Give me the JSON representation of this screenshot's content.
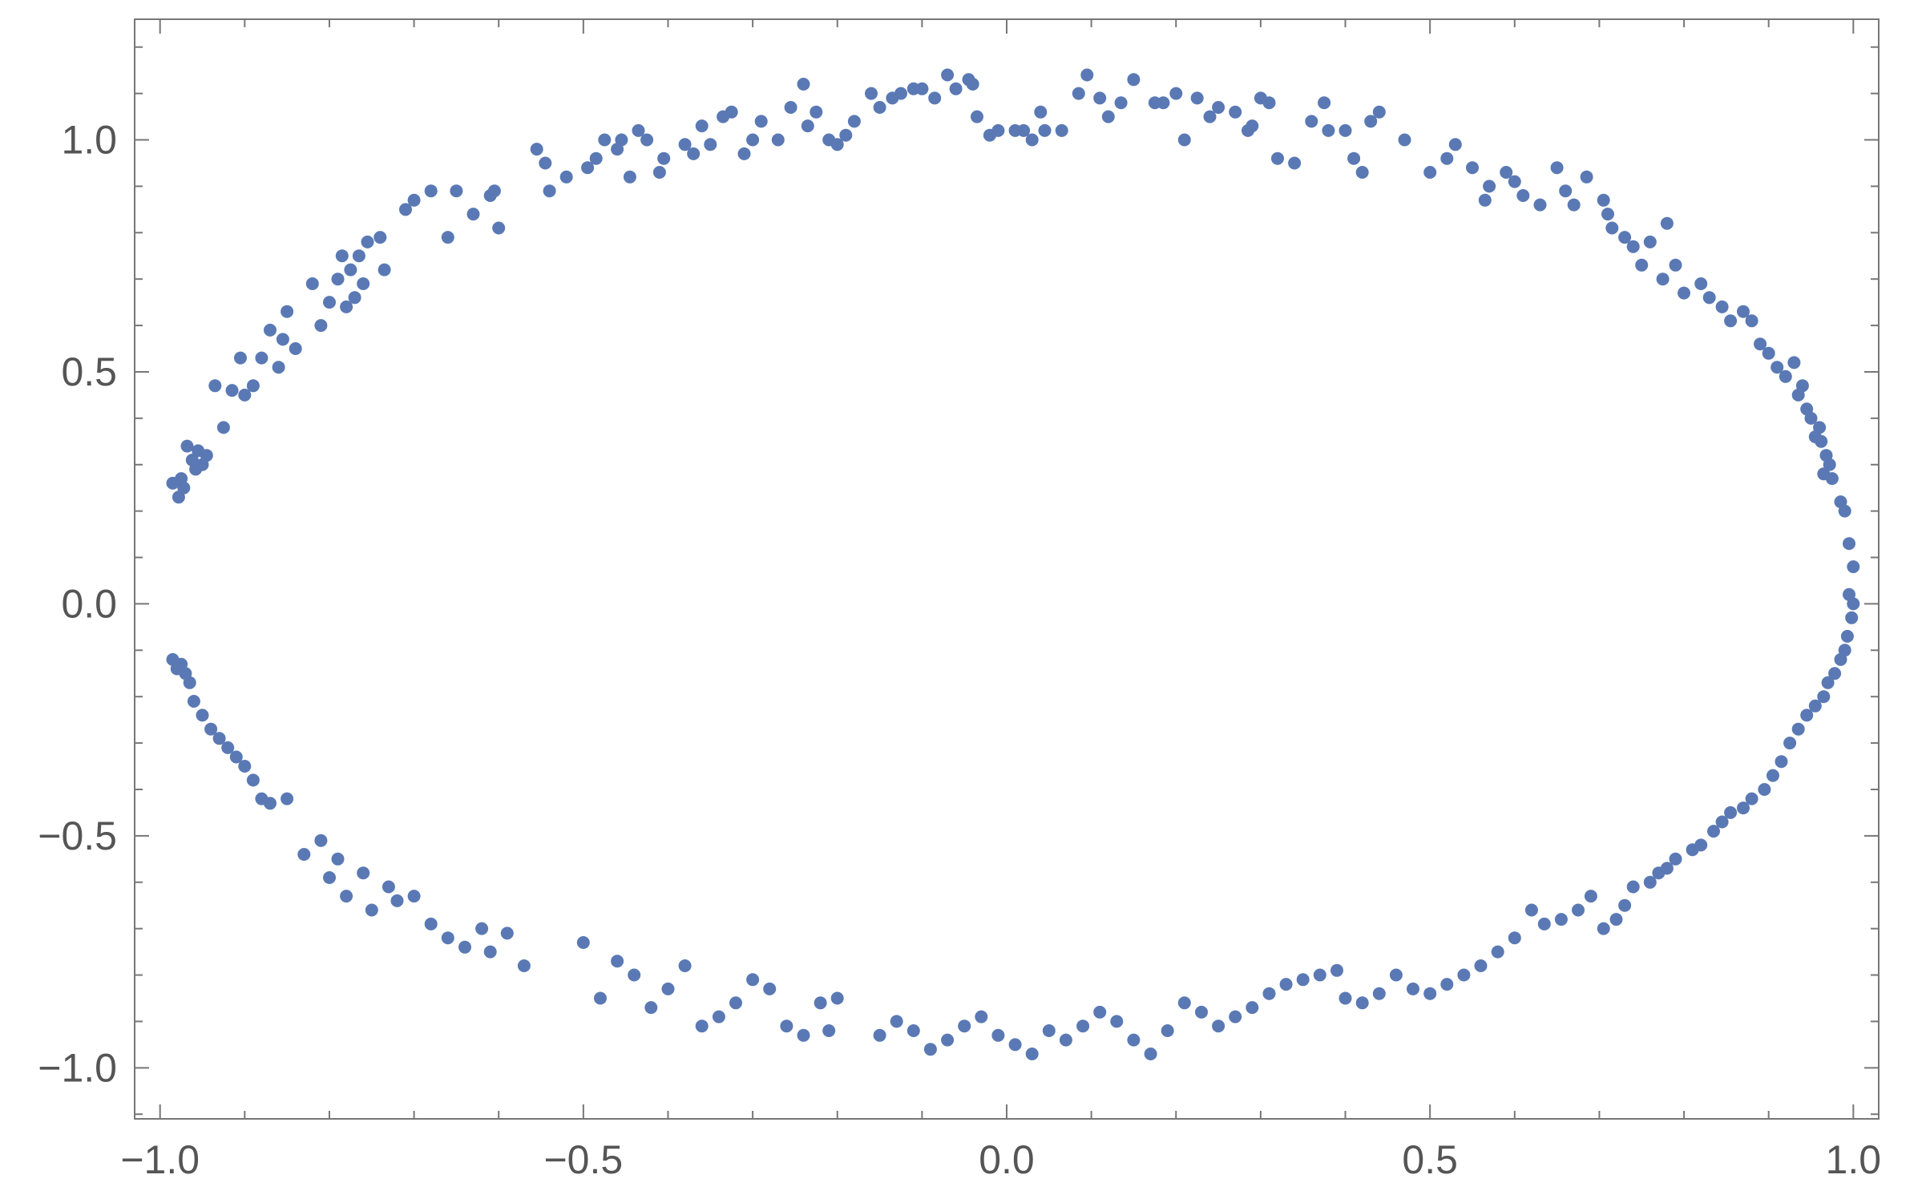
{
  "chart_data": {
    "type": "scatter",
    "title": "",
    "xlabel": "",
    "ylabel": "",
    "xlim": [
      -1.03,
      1.03
    ],
    "ylim": [
      -1.11,
      1.26
    ],
    "xticks": [
      -1.0,
      -0.5,
      0.0,
      0.5,
      1.0
    ],
    "xtick_labels": [
      "−1.0",
      "−0.5",
      "0.0",
      "0.5",
      "1.0"
    ],
    "yticks": [
      -1.0,
      -0.5,
      0.0,
      0.5,
      1.0
    ],
    "ytick_labels": [
      "−1.0",
      "−0.5",
      "0.0",
      "0.5",
      "1.0"
    ],
    "grid": false,
    "marker_color": "#5a79b4",
    "axis_color": "#777777",
    "series": [
      {
        "points": [
          [
            -0.985,
            0.26
          ],
          [
            -0.978,
            0.23
          ],
          [
            -0.975,
            0.27
          ],
          [
            -0.972,
            0.25
          ],
          [
            -0.968,
            0.34
          ],
          [
            -0.962,
            0.31
          ],
          [
            -0.958,
            0.29
          ],
          [
            -0.955,
            0.33
          ],
          [
            -0.95,
            0.3
          ],
          [
            -0.945,
            0.32
          ],
          [
            -0.935,
            0.47
          ],
          [
            -0.925,
            0.38
          ],
          [
            -0.915,
            0.46
          ],
          [
            -0.905,
            0.53
          ],
          [
            -0.9,
            0.45
          ],
          [
            -0.89,
            0.47
          ],
          [
            -0.88,
            0.53
          ],
          [
            -0.87,
            0.59
          ],
          [
            -0.86,
            0.51
          ],
          [
            -0.855,
            0.57
          ],
          [
            -0.85,
            0.63
          ],
          [
            -0.84,
            0.55
          ],
          [
            -0.82,
            0.69
          ],
          [
            -0.81,
            0.6
          ],
          [
            -0.8,
            0.65
          ],
          [
            -0.79,
            0.7
          ],
          [
            -0.785,
            0.75
          ],
          [
            -0.78,
            0.64
          ],
          [
            -0.775,
            0.72
          ],
          [
            -0.77,
            0.66
          ],
          [
            -0.765,
            0.75
          ],
          [
            -0.76,
            0.69
          ],
          [
            -0.755,
            0.78
          ],
          [
            -0.74,
            0.79
          ],
          [
            -0.735,
            0.72
          ],
          [
            -0.71,
            0.85
          ],
          [
            -0.7,
            0.87
          ],
          [
            -0.68,
            0.89
          ],
          [
            -0.66,
            0.79
          ],
          [
            -0.65,
            0.89
          ],
          [
            -0.63,
            0.84
          ],
          [
            -0.61,
            0.88
          ],
          [
            -0.605,
            0.89
          ],
          [
            -0.6,
            0.81
          ],
          [
            -0.555,
            0.98
          ],
          [
            -0.545,
            0.95
          ],
          [
            -0.54,
            0.89
          ],
          [
            -0.52,
            0.92
          ],
          [
            -0.495,
            0.94
          ],
          [
            -0.485,
            0.96
          ],
          [
            -0.475,
            1.0
          ],
          [
            -0.46,
            0.98
          ],
          [
            -0.455,
            1.0
          ],
          [
            -0.445,
            0.92
          ],
          [
            -0.435,
            1.02
          ],
          [
            -0.425,
            1.0
          ],
          [
            -0.41,
            0.93
          ],
          [
            -0.405,
            0.96
          ],
          [
            -0.38,
            0.99
          ],
          [
            -0.37,
            0.97
          ],
          [
            -0.36,
            1.03
          ],
          [
            -0.35,
            0.99
          ],
          [
            -0.335,
            1.05
          ],
          [
            -0.325,
            1.06
          ],
          [
            -0.31,
            0.97
          ],
          [
            -0.3,
            1.0
          ],
          [
            -0.29,
            1.04
          ],
          [
            -0.27,
            1.0
          ],
          [
            -0.255,
            1.07
          ],
          [
            -0.24,
            1.12
          ],
          [
            -0.235,
            1.03
          ],
          [
            -0.225,
            1.06
          ],
          [
            -0.21,
            1.0
          ],
          [
            -0.2,
            0.99
          ],
          [
            -0.19,
            1.01
          ],
          [
            -0.18,
            1.04
          ],
          [
            -0.16,
            1.1
          ],
          [
            -0.15,
            1.07
          ],
          [
            -0.135,
            1.09
          ],
          [
            -0.125,
            1.1
          ],
          [
            -0.11,
            1.11
          ],
          [
            -0.1,
            1.11
          ],
          [
            -0.085,
            1.09
          ],
          [
            -0.07,
            1.14
          ],
          [
            -0.06,
            1.11
          ],
          [
            -0.045,
            1.13
          ],
          [
            -0.04,
            1.12
          ],
          [
            -0.035,
            1.05
          ],
          [
            -0.02,
            1.01
          ],
          [
            -0.01,
            1.02
          ],
          [
            0.01,
            1.02
          ],
          [
            0.02,
            1.02
          ],
          [
            0.03,
            1.0
          ],
          [
            0.04,
            1.06
          ],
          [
            0.045,
            1.02
          ],
          [
            0.065,
            1.02
          ],
          [
            0.085,
            1.1
          ],
          [
            0.095,
            1.14
          ],
          [
            0.11,
            1.09
          ],
          [
            0.12,
            1.05
          ],
          [
            0.135,
            1.08
          ],
          [
            0.15,
            1.13
          ],
          [
            0.175,
            1.08
          ],
          [
            0.185,
            1.08
          ],
          [
            0.2,
            1.1
          ],
          [
            0.21,
            1.0
          ],
          [
            0.225,
            1.09
          ],
          [
            0.24,
            1.05
          ],
          [
            0.25,
            1.07
          ],
          [
            0.27,
            1.06
          ],
          [
            0.285,
            1.02
          ],
          [
            0.29,
            1.03
          ],
          [
            0.3,
            1.09
          ],
          [
            0.31,
            1.08
          ],
          [
            0.32,
            0.96
          ],
          [
            0.34,
            0.95
          ],
          [
            0.36,
            1.04
          ],
          [
            0.375,
            1.08
          ],
          [
            0.38,
            1.02
          ],
          [
            0.4,
            1.02
          ],
          [
            0.41,
            0.96
          ],
          [
            0.42,
            0.93
          ],
          [
            0.43,
            1.04
          ],
          [
            0.44,
            1.06
          ],
          [
            0.47,
            1.0
          ],
          [
            0.5,
            0.93
          ],
          [
            0.52,
            0.96
          ],
          [
            0.53,
            0.99
          ],
          [
            0.55,
            0.94
          ],
          [
            0.565,
            0.87
          ],
          [
            0.57,
            0.9
          ],
          [
            0.59,
            0.93
          ],
          [
            0.6,
            0.91
          ],
          [
            0.61,
            0.88
          ],
          [
            0.63,
            0.86
          ],
          [
            0.65,
            0.94
          ],
          [
            0.66,
            0.89
          ],
          [
            0.67,
            0.86
          ],
          [
            0.685,
            0.92
          ],
          [
            0.705,
            0.87
          ],
          [
            0.71,
            0.84
          ],
          [
            0.715,
            0.81
          ],
          [
            0.73,
            0.79
          ],
          [
            0.74,
            0.77
          ],
          [
            0.75,
            0.73
          ],
          [
            0.76,
            0.78
          ],
          [
            0.775,
            0.7
          ],
          [
            0.78,
            0.82
          ],
          [
            0.79,
            0.73
          ],
          [
            0.8,
            0.67
          ],
          [
            0.82,
            0.69
          ],
          [
            0.83,
            0.66
          ],
          [
            0.845,
            0.64
          ],
          [
            0.855,
            0.61
          ],
          [
            0.87,
            0.63
          ],
          [
            0.88,
            0.61
          ],
          [
            0.89,
            0.56
          ],
          [
            0.9,
            0.54
          ],
          [
            0.91,
            0.51
          ],
          [
            0.92,
            0.49
          ],
          [
            0.93,
            0.52
          ],
          [
            0.935,
            0.45
          ],
          [
            0.94,
            0.47
          ],
          [
            0.945,
            0.42
          ],
          [
            0.95,
            0.4
          ],
          [
            0.955,
            0.36
          ],
          [
            0.96,
            0.38
          ],
          [
            0.962,
            0.35
          ],
          [
            0.965,
            0.28
          ],
          [
            0.968,
            0.32
          ],
          [
            0.972,
            0.3
          ],
          [
            0.975,
            0.27
          ],
          [
            0.985,
            0.22
          ],
          [
            0.99,
            0.2
          ],
          [
            0.995,
            0.13
          ],
          [
            1.0,
            0.08
          ],
          [
            1.0,
            0.0
          ],
          [
            0.998,
            -0.03
          ],
          [
            0.995,
            0.02
          ],
          [
            0.993,
            -0.07
          ],
          [
            0.99,
            -0.1
          ],
          [
            0.985,
            -0.12
          ],
          [
            0.978,
            -0.15
          ],
          [
            0.97,
            -0.17
          ],
          [
            0.965,
            -0.2
          ],
          [
            0.955,
            -0.22
          ],
          [
            0.945,
            -0.24
          ],
          [
            0.935,
            -0.27
          ],
          [
            0.925,
            -0.3
          ],
          [
            0.915,
            -0.34
          ],
          [
            0.905,
            -0.37
          ],
          [
            0.895,
            -0.4
          ],
          [
            0.88,
            -0.42
          ],
          [
            0.87,
            -0.44
          ],
          [
            0.855,
            -0.45
          ],
          [
            0.845,
            -0.47
          ],
          [
            0.835,
            -0.49
          ],
          [
            0.82,
            -0.52
          ],
          [
            0.81,
            -0.53
          ],
          [
            0.79,
            -0.55
          ],
          [
            0.78,
            -0.57
          ],
          [
            0.77,
            -0.58
          ],
          [
            0.76,
            -0.6
          ],
          [
            0.74,
            -0.61
          ],
          [
            0.73,
            -0.65
          ],
          [
            0.72,
            -0.68
          ],
          [
            0.705,
            -0.7
          ],
          [
            0.69,
            -0.63
          ],
          [
            0.675,
            -0.66
          ],
          [
            0.655,
            -0.68
          ],
          [
            0.635,
            -0.69
          ],
          [
            0.62,
            -0.66
          ],
          [
            0.6,
            -0.72
          ],
          [
            0.58,
            -0.75
          ],
          [
            0.56,
            -0.78
          ],
          [
            0.54,
            -0.8
          ],
          [
            0.52,
            -0.82
          ],
          [
            0.5,
            -0.84
          ],
          [
            0.48,
            -0.83
          ],
          [
            0.46,
            -0.8
          ],
          [
            0.44,
            -0.84
          ],
          [
            0.42,
            -0.86
          ],
          [
            0.4,
            -0.85
          ],
          [
            0.39,
            -0.79
          ],
          [
            0.37,
            -0.8
          ],
          [
            0.35,
            -0.81
          ],
          [
            0.33,
            -0.82
          ],
          [
            0.31,
            -0.84
          ],
          [
            0.29,
            -0.87
          ],
          [
            0.27,
            -0.89
          ],
          [
            0.25,
            -0.91
          ],
          [
            0.23,
            -0.88
          ],
          [
            0.21,
            -0.86
          ],
          [
            0.19,
            -0.92
          ],
          [
            0.17,
            -0.97
          ],
          [
            0.15,
            -0.94
          ],
          [
            0.13,
            -0.9
          ],
          [
            0.11,
            -0.88
          ],
          [
            0.09,
            -0.91
          ],
          [
            0.07,
            -0.94
          ],
          [
            0.05,
            -0.92
          ],
          [
            0.03,
            -0.97
          ],
          [
            0.01,
            -0.95
          ],
          [
            -0.01,
            -0.93
          ],
          [
            -0.03,
            -0.89
          ],
          [
            -0.05,
            -0.91
          ],
          [
            -0.07,
            -0.94
          ],
          [
            -0.09,
            -0.96
          ],
          [
            -0.11,
            -0.92
          ],
          [
            -0.13,
            -0.9
          ],
          [
            -0.15,
            -0.93
          ],
          [
            -0.2,
            -0.85
          ],
          [
            -0.21,
            -0.92
          ],
          [
            -0.22,
            -0.86
          ],
          [
            -0.24,
            -0.93
          ],
          [
            -0.26,
            -0.91
          ],
          [
            -0.28,
            -0.83
          ],
          [
            -0.3,
            -0.81
          ],
          [
            -0.32,
            -0.86
          ],
          [
            -0.34,
            -0.89
          ],
          [
            -0.36,
            -0.91
          ],
          [
            -0.38,
            -0.78
          ],
          [
            -0.4,
            -0.83
          ],
          [
            -0.42,
            -0.87
          ],
          [
            -0.44,
            -0.8
          ],
          [
            -0.46,
            -0.77
          ],
          [
            -0.48,
            -0.85
          ],
          [
            -0.5,
            -0.73
          ],
          [
            -0.57,
            -0.78
          ],
          [
            -0.59,
            -0.71
          ],
          [
            -0.61,
            -0.75
          ],
          [
            -0.62,
            -0.7
          ],
          [
            -0.64,
            -0.74
          ],
          [
            -0.66,
            -0.72
          ],
          [
            -0.68,
            -0.69
          ],
          [
            -0.7,
            -0.63
          ],
          [
            -0.72,
            -0.64
          ],
          [
            -0.73,
            -0.61
          ],
          [
            -0.75,
            -0.66
          ],
          [
            -0.76,
            -0.58
          ],
          [
            -0.78,
            -0.63
          ],
          [
            -0.79,
            -0.55
          ],
          [
            -0.8,
            -0.59
          ],
          [
            -0.81,
            -0.51
          ],
          [
            -0.83,
            -0.54
          ],
          [
            -0.85,
            -0.42
          ],
          [
            -0.87,
            -0.43
          ],
          [
            -0.88,
            -0.42
          ],
          [
            -0.89,
            -0.38
          ],
          [
            -0.9,
            -0.35
          ],
          [
            -0.91,
            -0.33
          ],
          [
            -0.92,
            -0.31
          ],
          [
            -0.93,
            -0.29
          ],
          [
            -0.94,
            -0.27
          ],
          [
            -0.95,
            -0.24
          ],
          [
            -0.96,
            -0.21
          ],
          [
            -0.965,
            -0.17
          ],
          [
            -0.97,
            -0.15
          ],
          [
            -0.975,
            -0.13
          ],
          [
            -0.98,
            -0.14
          ],
          [
            -0.985,
            -0.12
          ]
        ]
      }
    ]
  }
}
